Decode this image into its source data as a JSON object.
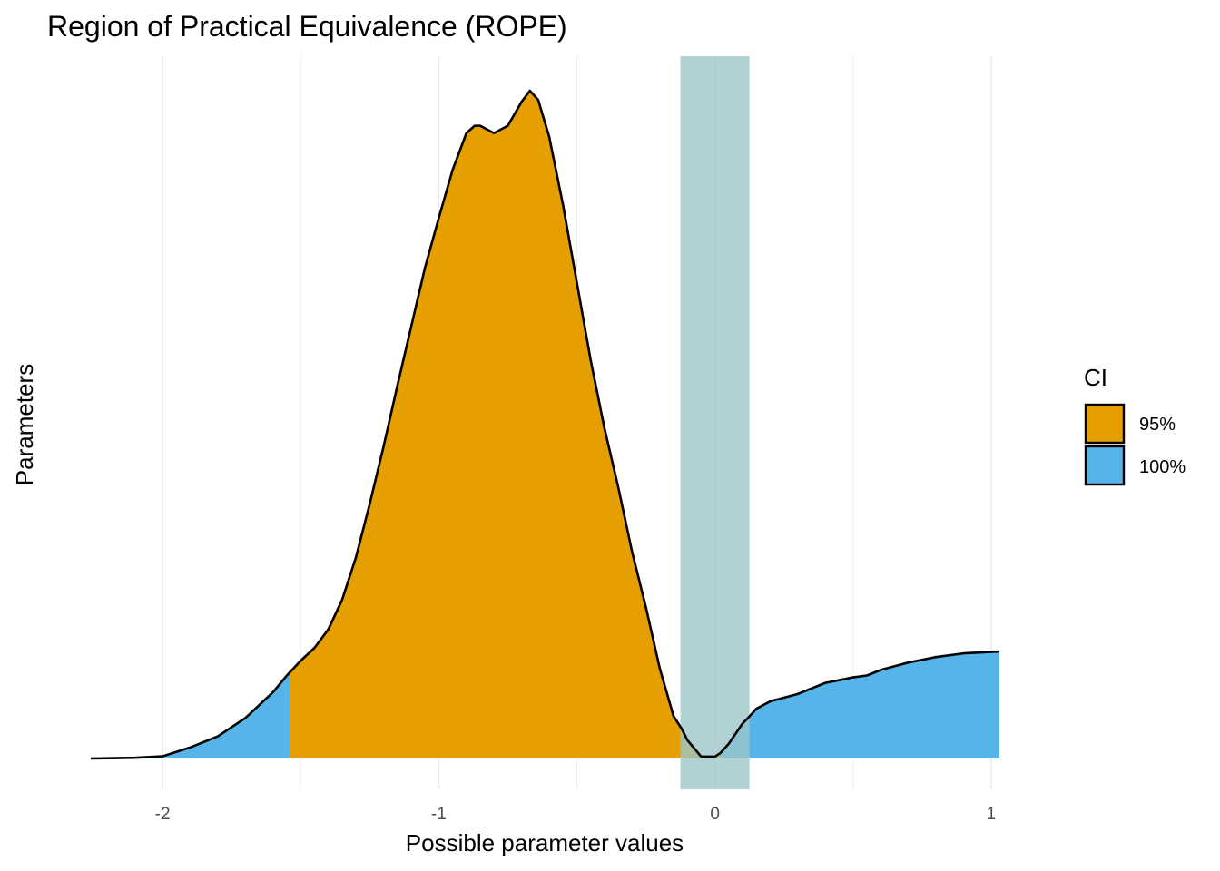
{
  "chart_data": {
    "type": "area",
    "title": "Region of Practical Equivalence (ROPE)",
    "xlabel": "Possible parameter values",
    "ylabel": "Parameters",
    "xlim": [
      -2.26,
      1.03
    ],
    "x_ticks": [
      -2,
      -1,
      0,
      1
    ],
    "x_tick_labels": [
      "-2",
      "-1",
      "0",
      "1"
    ],
    "grid": "vertical-major-and-minor",
    "rope": {
      "low": -0.125,
      "high": 0.125,
      "color": "#9ec5c9"
    },
    "ci95": {
      "low": -1.54,
      "high": 0.02
    },
    "density": {
      "x": [
        -2.26,
        -2.1,
        -2.0,
        -1.9,
        -1.8,
        -1.7,
        -1.6,
        -1.55,
        -1.5,
        -1.45,
        -1.4,
        -1.35,
        -1.3,
        -1.25,
        -1.2,
        -1.15,
        -1.1,
        -1.05,
        -1.0,
        -0.95,
        -0.9,
        -0.87,
        -0.85,
        -0.8,
        -0.75,
        -0.7,
        -0.67,
        -0.64,
        -0.6,
        -0.55,
        -0.5,
        -0.45,
        -0.4,
        -0.35,
        -0.3,
        -0.25,
        -0.2,
        -0.15,
        -0.12,
        -0.1,
        -0.05,
        0.0,
        0.02,
        0.05,
        0.1,
        0.12,
        0.15,
        0.2,
        0.3,
        0.4,
        0.5,
        0.55,
        0.6,
        0.7,
        0.8,
        0.9,
        1.03
      ],
      "y": [
        0.0,
        0.004,
        0.012,
        0.06,
        0.12,
        0.22,
        0.36,
        0.45,
        0.53,
        0.6,
        0.7,
        0.86,
        1.09,
        1.38,
        1.69,
        2.02,
        2.34,
        2.66,
        2.93,
        3.19,
        3.39,
        3.43,
        3.43,
        3.39,
        3.43,
        3.56,
        3.62,
        3.57,
        3.37,
        3.0,
        2.58,
        2.16,
        1.79,
        1.47,
        1.12,
        0.82,
        0.49,
        0.23,
        0.16,
        0.1,
        0.01,
        0.01,
        0.03,
        0.08,
        0.19,
        0.22,
        0.27,
        0.31,
        0.35,
        0.41,
        0.44,
        0.45,
        0.48,
        0.52,
        0.55,
        0.57,
        0.58
      ],
      "y_note_ignore": true
    },
    "legend": {
      "title": "CI",
      "placement": "right",
      "items": [
        {
          "label": "95%",
          "color": "#e69f00"
        },
        {
          "label": "100%",
          "color": "#56b4e9"
        }
      ]
    }
  }
}
